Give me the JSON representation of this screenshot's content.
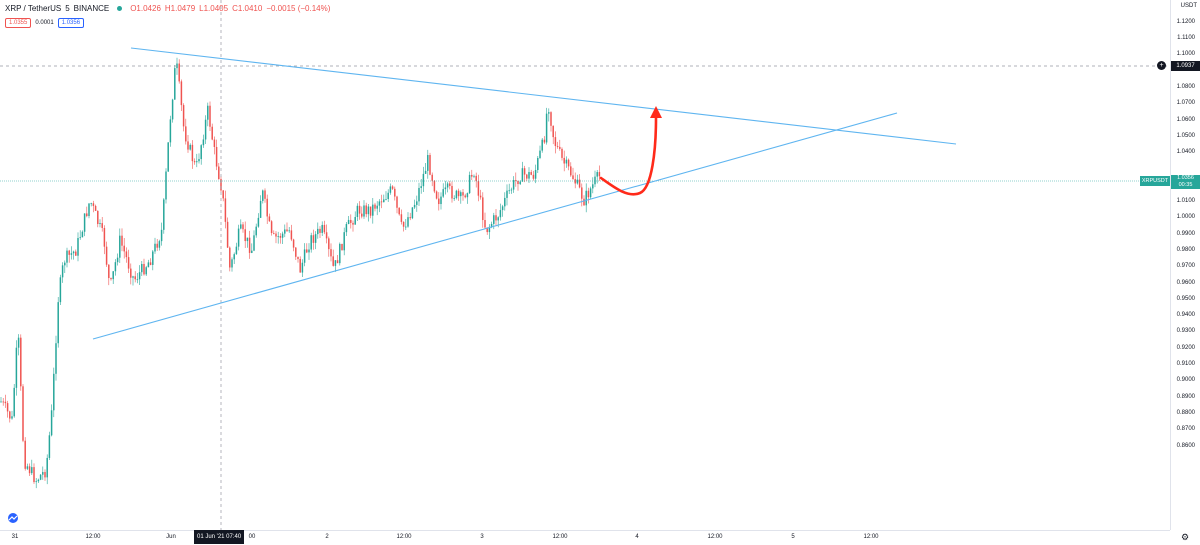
{
  "legend": {
    "symbol": "XRP / TetherUS",
    "interval": "5",
    "exchange": "BINANCE",
    "open": "O1.0426",
    "high": "H1.0479",
    "low": "L1.0405",
    "close": "C1.0410",
    "change": "−0.0015 (−0.14%)"
  },
  "quote": {
    "bid": "1.0355",
    "spread": "0.0001",
    "ask": "1.0356"
  },
  "price_axis": {
    "currency": "USDT",
    "ticks": [
      "1.1200",
      "1.1100",
      "1.1000",
      "1.0800",
      "1.0700",
      "1.0600",
      "1.0500",
      "1.0400",
      "1.0200",
      "1.0100",
      "1.0000",
      "0.9900",
      "0.9800",
      "0.9700",
      "0.9600",
      "0.9500",
      "0.9400",
      "0.9300",
      "0.9200",
      "0.9100",
      "0.9000",
      "0.8900",
      "0.8800",
      "0.8700",
      "0.8600"
    ],
    "crosshair_price": "1.0937",
    "last_price": "1.0356",
    "countdown": "00:35",
    "symbol_tag": "XRPUSDT"
  },
  "time_axis": {
    "ticks": [
      "31",
      "12:00",
      "Jun",
      "2",
      "12:00",
      "3",
      "12:00",
      "4",
      "12:00",
      "5",
      "12:00"
    ],
    "crosshair_time": "01 Jun '21  07:40",
    "crosshair_tail": "00"
  },
  "colors": {
    "up": "#26a69a",
    "down": "#ef5350",
    "trendline": "#5fb5f0",
    "arrow": "#ff2a1a",
    "crosshair": "#9598a1"
  }
}
